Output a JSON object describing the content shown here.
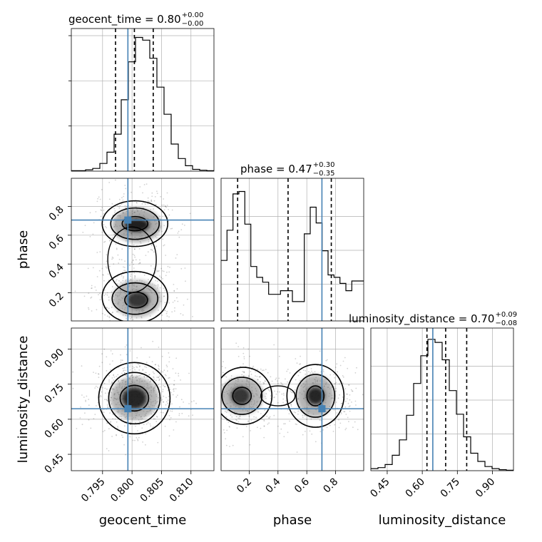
{
  "chart_data": {
    "type": "corner",
    "parameters": [
      "geocent_time",
      "phase",
      "luminosity_distance"
    ],
    "truths": {
      "geocent_time": 0.7993,
      "phase": 0.705,
      "luminosity_distance": 0.645
    },
    "ranges": {
      "geocent_time": [
        0.7897,
        0.8139
      ],
      "phase": [
        0.005,
        0.995
      ],
      "luminosity_distance": [
        0.38,
        0.99
      ]
    },
    "titles": [
      {
        "param": "geocent_time",
        "text": "geocent_time = 0.80",
        "sup": "+0.00",
        "sub": "−0.00"
      },
      {
        "param": "phase",
        "text": "phase = 0.47",
        "sup": "+0.30",
        "sub": "−0.35"
      },
      {
        "param": "luminosity_distance",
        "text": "luminosity_distance = 0.70",
        "sup": "+0.09",
        "sub": "−0.08"
      }
    ],
    "quantiles": {
      "geocent_time": [
        0.7972,
        0.8004,
        0.8036
      ],
      "phase": [
        0.12,
        0.47,
        0.77
      ],
      "luminosity_distance": [
        0.62,
        0.7,
        0.79
      ]
    },
    "hist1d": {
      "geocent_time": [
        0.5,
        0.5,
        1.5,
        3.0,
        8.5,
        21,
        41,
        79,
        121,
        148,
        145,
        125,
        93,
        63,
        30,
        14,
        6,
        2,
        1,
        0.5
      ],
      "phase": [
        50,
        75,
        105,
        107,
        80,
        45,
        36,
        32,
        22,
        22,
        25,
        25,
        16,
        16,
        72,
        94,
        81,
        58,
        38,
        36,
        31,
        25,
        33,
        33
      ],
      "luminosity_distance": [
        2,
        3,
        6,
        15,
        30,
        54,
        85,
        112,
        128,
        125,
        108,
        78,
        55,
        33,
        17,
        9,
        4,
        2,
        1,
        0.5
      ]
    },
    "hist1d_max": {
      "geocent_time": 150,
      "phase": 112,
      "luminosity_distance": 132
    },
    "yticks_geocent_hist": [
      50,
      100,
      150
    ],
    "ticks": {
      "geocent_time": [
        "0.795",
        "0.800",
        "0.805",
        "0.810"
      ],
      "phase": [
        "0.2",
        "0.4",
        "0.6",
        "0.8"
      ],
      "luminosity_distance": [
        "0.45",
        "0.60",
        "0.75",
        "0.90"
      ]
    },
    "tick_values": {
      "geocent_time": [
        0.795,
        0.8,
        0.805,
        0.81
      ],
      "phase": [
        0.2,
        0.4,
        0.6,
        0.8
      ],
      "luminosity_distance": [
        0.45,
        0.6,
        0.75,
        0.9
      ]
    },
    "axis_labels": {
      "x": [
        "geocent_time",
        "phase",
        "luminosity_distance"
      ],
      "y": [
        "phase",
        "luminosity_distance"
      ]
    },
    "colors": {
      "truth": "#4682b4",
      "contour": "#000000",
      "grid": "#b0b0b0",
      "hist": "#000000"
    },
    "grid": true
  }
}
